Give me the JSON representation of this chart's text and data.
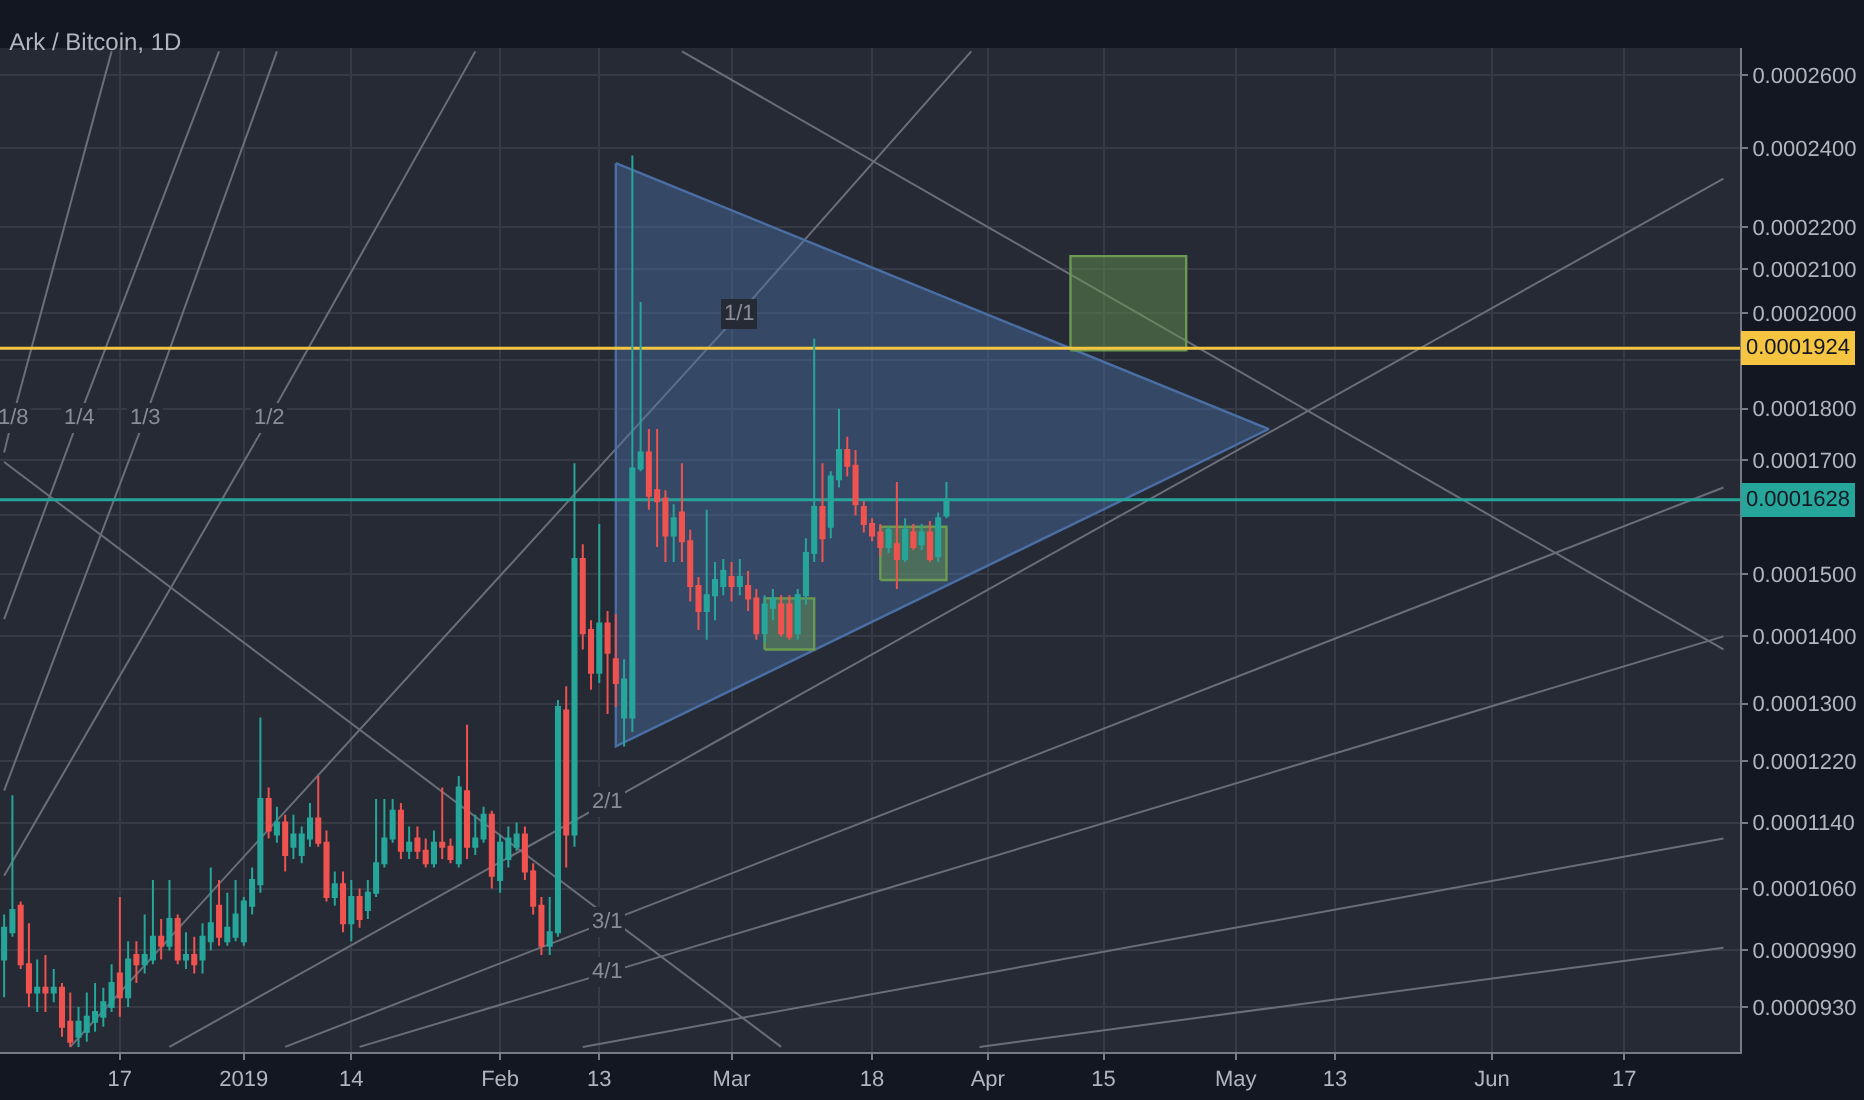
{
  "chart_data": {
    "type": "candlestick",
    "title": "Ark / Bitcoin, 1D",
    "x": [
      "2018-12-03",
      "2018-12-04",
      "2018-12-05",
      "2018-12-06",
      "2018-12-07",
      "2018-12-08",
      "2018-12-09",
      "2018-12-10",
      "2018-12-11",
      "2018-12-12",
      "2018-12-13",
      "2018-12-14",
      "2018-12-15",
      "2018-12-16",
      "2018-12-17",
      "2018-12-18",
      "2018-12-19",
      "2018-12-20",
      "2018-12-21",
      "2018-12-22",
      "2018-12-23",
      "2018-12-24",
      "2018-12-25",
      "2018-12-26",
      "2018-12-27",
      "2018-12-28",
      "2018-12-29",
      "2018-12-30",
      "2018-12-31",
      "2019-01-01",
      "2019-01-02",
      "2019-01-03",
      "2019-01-04",
      "2019-01-05",
      "2019-01-06",
      "2019-01-07",
      "2019-01-08",
      "2019-01-09",
      "2019-01-10",
      "2019-01-11",
      "2019-01-12",
      "2019-01-13",
      "2019-01-14",
      "2019-01-15",
      "2019-01-16",
      "2019-01-17",
      "2019-01-18",
      "2019-01-19",
      "2019-01-20",
      "2019-01-21",
      "2019-01-22",
      "2019-01-23",
      "2019-01-24",
      "2019-01-25",
      "2019-01-26",
      "2019-01-27",
      "2019-01-28",
      "2019-01-29",
      "2019-01-30",
      "2019-01-31",
      "2019-02-01",
      "2019-02-02",
      "2019-02-03",
      "2019-02-04",
      "2019-02-05",
      "2019-02-06",
      "2019-02-07",
      "2019-02-08",
      "2019-02-09",
      "2019-02-10",
      "2019-02-11",
      "2019-02-12",
      "2019-02-13",
      "2019-02-14",
      "2019-02-15",
      "2019-02-16",
      "2019-02-17",
      "2019-02-18",
      "2019-02-19",
      "2019-02-20",
      "2019-02-21",
      "2019-02-22",
      "2019-02-23",
      "2019-02-24",
      "2019-02-25",
      "2019-02-26",
      "2019-02-27",
      "2019-02-28",
      "2019-03-01",
      "2019-03-02",
      "2019-03-03",
      "2019-03-04",
      "2019-03-05",
      "2019-03-06",
      "2019-03-07",
      "2019-03-08",
      "2019-03-09",
      "2019-03-10",
      "2019-03-11",
      "2019-03-12",
      "2019-03-13",
      "2019-03-14",
      "2019-03-15",
      "2019-03-16",
      "2019-03-17",
      "2019-03-18",
      "2019-03-19",
      "2019-03-20",
      "2019-03-21",
      "2019-03-22",
      "2019-03-23",
      "2019-03-24",
      "2019-03-25",
      "2019-03-26",
      "2019-03-27"
    ],
    "ohlc": [
      [
        9.8e-05,
        0.000103,
        9.4e-05,
        0.0001015
      ],
      [
        0.000101,
        0.0001175,
        0.0001005,
        0.0001035
      ],
      [
        0.000104,
        0.0001045,
        9.7e-05,
        9.75e-05
      ],
      [
        9.75e-05,
        0.000102,
        9.3e-05,
        9.45e-05
      ],
      [
        9.45e-05,
        9.8e-05,
        9.25e-05,
        9.5e-05
      ],
      [
        9.5e-05,
        9.85e-05,
        9.25e-05,
        9.45e-05
      ],
      [
        9.45e-05,
        9.7e-05,
        9.35e-05,
        9.5e-05
      ],
      [
        9.5e-05,
        9.55e-05,
        9e-05,
        9.1e-05
      ],
      [
        9.15e-05,
        9.45e-05,
        8.9e-05,
        8.95e-05
      ],
      [
        9e-05,
        9.3e-05,
        8.9e-05,
        9.15e-05
      ],
      [
        9.05e-05,
        9.45e-05,
        8.95e-05,
        9.2e-05
      ],
      [
        9.15e-05,
        9.55e-05,
        9.05e-05,
        9.25e-05
      ],
      [
        9.2e-05,
        9.5e-05,
        9.1e-05,
        9.35e-05
      ],
      [
        9.3e-05,
        9.75e-05,
        9.25e-05,
        9.55e-05
      ],
      [
        9.65e-05,
        0.000105,
        9.2e-05,
        9.4e-05
      ],
      [
        9.4e-05,
        0.0001,
        9.3e-05,
        9.8e-05
      ],
      [
        9.85e-05,
        0.0001,
        9.55e-05,
        9.75e-05
      ],
      [
        9.75e-05,
        0.000103,
        9.65e-05,
        9.85e-05
      ],
      [
        9.8e-05,
        0.000107,
        9.75e-05,
        0.0001005
      ],
      [
        0.0001005,
        0.0001025,
        9.8e-05,
        9.95e-05
      ],
      [
        9.95e-05,
        0.000107,
        9.9e-05,
        0.0001025
      ],
      [
        0.0001025,
        0.000103,
        9.75e-05,
        9.8e-05
      ],
      [
        9.8e-05,
        0.000101,
        9.7e-05,
        9.85e-05
      ],
      [
        9.85e-05,
        0.0001005,
        9.65e-05,
        9.75e-05
      ],
      [
        9.8e-05,
        0.000102,
        9.65e-05,
        0.0001005
      ],
      [
        0.0001,
        0.0001085,
        9.9e-05,
        0.000102
      ],
      [
        0.000104,
        0.000107,
        9.95e-05,
        0.0001005
      ],
      [
        0.0001,
        0.0001055,
        9.95e-05,
        0.0001015
      ],
      [
        0.0001005,
        0.000107,
        0.0001,
        0.000103
      ],
      [
        0.0001,
        0.000105,
        9.95e-05,
        0.0001045
      ],
      [
        0.000104,
        0.0001085,
        0.000103,
        0.000107
      ],
      [
        0.0001065,
        0.000128,
        0.0001055,
        0.000117
      ],
      [
        0.000117,
        0.0001185,
        0.000112,
        0.000113
      ],
      [
        0.0001125,
        0.000116,
        0.0001115,
        0.000114
      ],
      [
        0.000114,
        0.000115,
        0.000108,
        0.00011
      ],
      [
        0.000111,
        0.000115,
        0.0001095,
        0.0001125
      ],
      [
        0.00011,
        0.0001135,
        0.000109,
        0.0001125
      ],
      [
        0.000112,
        0.0001165,
        0.000111,
        0.0001145
      ],
      [
        0.0001145,
        0.00012,
        0.000111,
        0.0001115
      ],
      [
        0.0001115,
        0.000113,
        0.0001045,
        0.000105
      ],
      [
        0.000105,
        0.000108,
        0.000104,
        0.0001065
      ],
      [
        0.0001065,
        0.000108,
        0.000101,
        0.000102
      ],
      [
        0.000102,
        0.000107,
        0.0001,
        0.000105
      ],
      [
        0.000105,
        0.000106,
        0.0001015,
        0.0001025
      ],
      [
        0.0001035,
        0.000107,
        0.0001025,
        0.0001055
      ],
      [
        0.0001055,
        0.000117,
        0.000105,
        0.000109
      ],
      [
        0.000109,
        0.000117,
        0.0001085,
        0.000112
      ],
      [
        0.000112,
        0.000117,
        0.0001115,
        0.0001155
      ],
      [
        0.0001155,
        0.0001165,
        0.0001095,
        0.0001105
      ],
      [
        0.0001105,
        0.0001135,
        0.0001095,
        0.0001115
      ],
      [
        0.000112,
        0.0001135,
        0.0001095,
        0.0001105
      ],
      [
        0.0001105,
        0.000112,
        0.0001085,
        0.000109
      ],
      [
        0.000109,
        0.000113,
        0.0001085,
        0.0001115
      ],
      [
        0.0001115,
        0.0001185,
        0.0001095,
        0.000111
      ],
      [
        0.000111,
        0.000112,
        0.000109,
        0.0001095
      ],
      [
        0.000109,
        0.00012,
        0.0001085,
        0.0001185
      ],
      [
        0.000118,
        0.000127,
        0.0001095,
        0.000111
      ],
      [
        0.000111,
        0.000115,
        0.00011,
        0.000112
      ],
      [
        0.000112,
        0.000116,
        0.0001115,
        0.000115
      ],
      [
        0.000115,
        0.0001155,
        0.000106,
        0.0001075
      ],
      [
        0.000107,
        0.0001125,
        0.0001055,
        0.0001115
      ],
      [
        0.0001095,
        0.0001135,
        0.0001085,
        0.000112
      ],
      [
        0.000111,
        0.000114,
        0.0001105,
        0.0001125
      ],
      [
        0.0001125,
        0.0001135,
        0.000107,
        0.000108
      ],
      [
        0.000108,
        0.000109,
        0.000103,
        0.000104
      ],
      [
        0.000104,
        0.000105,
        9.85e-05,
        9.95e-05
      ],
      [
        9.95e-05,
        0.000105,
        9.85e-05,
        0.000101
      ],
      [
        0.000101,
        0.0001305,
        0.0001005,
        0.0001295
      ],
      [
        0.000129,
        0.0001325,
        0.0001085,
        0.0001125
      ],
      [
        0.0001125,
        0.0001695,
        0.000111,
        0.0001525
      ],
      [
        0.0001525,
        0.000155,
        0.000138,
        0.0001405
      ],
      [
        0.000141,
        0.0001425,
        0.000132,
        0.0001345
      ],
      [
        0.0001345,
        0.0001585,
        0.000133,
        0.000142
      ],
      [
        0.000142,
        0.000144,
        0.0001285,
        0.0001375
      ],
      [
        0.0001365,
        0.0001435,
        0.0001295,
        0.000133
      ],
      [
        0.000128,
        0.0001365,
        0.000124,
        0.0001335
      ],
      [
        0.000128,
        0.000238,
        0.000126,
        0.0001685
      ],
      [
        0.0001685,
        0.0002025,
        0.000168,
        0.0001715
      ],
      [
        0.0001715,
        0.000176,
        0.000161,
        0.0001635
      ],
      [
        0.0001645,
        0.000176,
        0.0001545,
        0.0001625
      ],
      [
        0.000163,
        0.0001645,
        0.000152,
        0.0001565
      ],
      [
        0.0001565,
        0.000162,
        0.000152,
        0.0001595
      ],
      [
        0.0001605,
        0.0001695,
        0.000152,
        0.0001555
      ],
      [
        0.0001555,
        0.0001575,
        0.0001455,
        0.000148
      ],
      [
        0.000148,
        0.0001495,
        0.000141,
        0.000144
      ],
      [
        0.000144,
        0.000161,
        0.0001395,
        0.0001465
      ],
      [
        0.0001465,
        0.000152,
        0.0001425,
        0.000149
      ],
      [
        0.000148,
        0.0001525,
        0.0001465,
        0.0001505
      ],
      [
        0.0001495,
        0.000152,
        0.0001455,
        0.000148
      ],
      [
        0.000148,
        0.0001525,
        0.0001465,
        0.0001495
      ],
      [
        0.000148,
        0.0001505,
        0.000144,
        0.000146
      ],
      [
        0.000146,
        0.0001475,
        0.0001395,
        0.0001405
      ],
      [
        0.0001405,
        0.0001465,
        0.000139,
        0.000145
      ],
      [
        0.0001445,
        0.0001475,
        0.0001425,
        0.000146
      ],
      [
        0.000145,
        0.0001465,
        0.00014,
        0.0001405
      ],
      [
        0.000145,
        0.0001465,
        0.0001395,
        0.00014
      ],
      [
        0.0001405,
        0.0001475,
        0.0001395,
        0.0001465
      ],
      [
        0.0001465,
        0.000156,
        0.000145,
        0.0001535
      ],
      [
        0.0001535,
        0.0001945,
        0.000152,
        0.0001615
      ],
      [
        0.0001615,
        0.0001695,
        0.000152,
        0.000156
      ],
      [
        0.000158,
        0.000168,
        0.000156,
        0.000167
      ],
      [
        0.0001665,
        0.00018,
        0.000165,
        0.000172
      ],
      [
        0.000172,
        0.0001745,
        0.000167,
        0.000169
      ],
      [
        0.000169,
        0.000172,
        0.00016,
        0.000162
      ],
      [
        0.0001615,
        0.0001625,
        0.000157,
        0.0001585
      ],
      [
        0.0001585,
        0.0001595,
        0.0001555,
        0.0001565
      ],
      [
        0.000157,
        0.0001585,
        0.000153,
        0.0001545
      ],
      [
        0.0001545,
        0.000158,
        0.0001535,
        0.0001575
      ],
      [
        0.000155,
        0.000166,
        0.0001475,
        0.0001525
      ],
      [
        0.0001525,
        0.0001595,
        0.000152,
        0.0001575
      ],
      [
        0.000157,
        0.0001585,
        0.000154,
        0.0001545
      ],
      [
        0.000155,
        0.0001585,
        0.000154,
        0.000157
      ],
      [
        0.000157,
        0.000159,
        0.000152,
        0.0001525
      ],
      [
        0.000153,
        0.0001605,
        0.000152,
        0.0001595
      ],
      [
        0.00016,
        0.000166,
        0.0001595,
        0.0001628
      ]
    ],
    "series": [
      {
        "type": "line",
        "name": "1/1",
        "color": "#6a6e79",
        "x": [
          "2018-12-11",
          "2019-03-02",
          "2019-03-30"
        ],
        "values": [
          8.9e-05,
          0.0002,
          0.000267
        ]
      },
      {
        "type": "line",
        "name": "2/1",
        "color": "#6a6e79",
        "x": [
          "2018-12-23",
          "2019-02-14",
          "2019-06-29"
        ],
        "values": [
          8.9e-05,
          0.0001166,
          0.000232
        ]
      },
      {
        "type": "line",
        "name": "3/1",
        "color": "#6a6e79",
        "x": [
          "2019-01-06",
          "2019-02-14",
          "2019-06-29"
        ],
        "values": [
          8.9e-05,
          0.0001022,
          0.000165
        ]
      },
      {
        "type": "line",
        "name": "4/1",
        "color": "#6a6e79",
        "x": [
          "2019-01-15",
          "2019-02-14",
          "2019-06-29"
        ],
        "values": [
          8.9e-05,
          9.66e-05,
          0.00014
        ]
      },
      {
        "type": "line",
        "color": "#6a6e79",
        "x": [
          "2019-02-11",
          "2019-06-29"
        ],
        "values": [
          8.9e-05,
          0.000112
        ]
      },
      {
        "type": "line",
        "color": "#6a6e79",
        "x": [
          "2019-03-31",
          "2019-06-29"
        ],
        "values": [
          8.9e-05,
          9.93e-05
        ]
      },
      {
        "type": "line",
        "name": "1/2",
        "color": "#6a6e79",
        "x": [
          "2018-12-03",
          "2019-01-04",
          "2019-01-29"
        ],
        "values": [
          0.0001075,
          0.000178,
          0.000267
        ]
      },
      {
        "type": "line",
        "name": "1/3",
        "color": "#6a6e79",
        "x": [
          "2018-12-03",
          "2018-12-20",
          "2019-01-05"
        ],
        "values": [
          0.0001181,
          0.000178,
          0.000267
        ]
      },
      {
        "type": "line",
        "name": "1/4",
        "color": "#6a6e79",
        "x": [
          "2018-12-03",
          "2018-12-12",
          "2018-12-29"
        ],
        "values": [
          0.0001427,
          0.000178,
          0.000267
        ]
      },
      {
        "type": "line",
        "name": "1/8",
        "color": "#6a6e79",
        "x": [
          "2018-12-03",
          "2018-12-04",
          "2018-12-16"
        ],
        "values": [
          0.0001715,
          0.000178,
          0.000267
        ]
      },
      {
        "type": "line",
        "color": "#6a6e79",
        "x": [
          "2018-12-03",
          "2019-03-07"
        ],
        "values": [
          0.0001697,
          8.9e-05
        ]
      },
      {
        "type": "line",
        "color": "#6a6e79",
        "x": [
          "2019-02-23",
          "2019-06-29"
        ],
        "values": [
          0.000267,
          0.000138
        ]
      },
      {
        "type": "area",
        "color": "#4a6fa5",
        "x": [
          "2019-02-15",
          "2019-05-05",
          "2019-02-15",
          "2019-02-15"
        ],
        "values": [
          0.000236,
          0.000176,
          0.000124,
          0.000236
        ]
      },
      {
        "type": "area",
        "color": "#6b9a50",
        "x": [
          "2019-04-11",
          "2019-04-25",
          "2019-04-25",
          "2019-04-11",
          "2019-04-11"
        ],
        "values": [
          0.000192,
          0.000192,
          0.000213,
          0.000213,
          0.000192
        ]
      },
      {
        "type": "area",
        "color": "#6b9a50",
        "x": [
          "2019-03-05",
          "2019-03-11",
          "2019-03-11",
          "2019-03-05",
          "2019-03-05"
        ],
        "values": [
          0.000138,
          0.000138,
          0.000146,
          0.000146,
          0.000138
        ]
      },
      {
        "type": "area",
        "color": "#6b9a50",
        "x": [
          "2019-03-19",
          "2019-03-27",
          "2019-03-27",
          "2019-03-19",
          "2019-03-19"
        ],
        "values": [
          0.000149,
          0.000149,
          0.000158,
          0.000158,
          0.000149
        ]
      }
    ],
    "ref_lines": [
      {
        "axis": "y",
        "value": 0.0001924,
        "label": "0.0001924",
        "color": "#f5c542"
      },
      {
        "axis": "y",
        "value": 0.0001628,
        "label": "0.0001628",
        "color": "#26a69a"
      }
    ],
    "xlim": [
      "2018-12-02T12:00",
      "2019-07-01"
    ],
    "xticks": [
      {
        "value": "2018-12-17",
        "label": "17"
      },
      {
        "value": "2019-01-01",
        "label": "2019"
      },
      {
        "value": "2019-01-14",
        "label": "14"
      },
      {
        "value": "2019-02-01",
        "label": "Feb"
      },
      {
        "value": "2019-02-13",
        "label": "13"
      },
      {
        "value": "2019-03-01",
        "label": "Mar"
      },
      {
        "value": "2019-03-18",
        "label": "18"
      },
      {
        "value": "2019-04-01",
        "label": "Apr"
      },
      {
        "value": "2019-04-15",
        "label": "15"
      },
      {
        "value": "2019-05-01",
        "label": "May"
      },
      {
        "value": "2019-05-13",
        "label": "13"
      },
      {
        "value": "2019-06-01",
        "label": "Jun"
      },
      {
        "value": "2019-06-17",
        "label": "17"
      }
    ],
    "ylim": [
      8.85e-05,
      0.000268
    ],
    "yticks": [
      {
        "value": 9.3e-05,
        "label": "0.0000930"
      },
      {
        "value": 9.9e-05,
        "label": "0.0000990"
      },
      {
        "value": 0.000106,
        "label": "0.0001060"
      },
      {
        "value": 0.000114,
        "label": "0.0001140"
      },
      {
        "value": 0.000122,
        "label": "0.0001220"
      },
      {
        "value": 0.00013,
        "label": "0.0001300"
      },
      {
        "value": 0.00014,
        "label": "0.0001400"
      },
      {
        "value": 0.00015,
        "label": "0.0001500"
      },
      {
        "value": 0.00016,
        "label": null
      },
      {
        "value": 0.00017,
        "label": "0.0001700"
      },
      {
        "value": 0.00018,
        "label": "0.0001800"
      },
      {
        "value": 0.00019,
        "label": null
      },
      {
        "value": 0.0002,
        "label": "0.0002000"
      },
      {
        "value": 0.00021,
        "label": "0.0002100"
      },
      {
        "value": 0.00022,
        "label": "0.0002200"
      },
      {
        "value": 0.00024,
        "label": "0.0002400"
      },
      {
        "value": 0.00026,
        "label": "0.0002600"
      }
    ],
    "log": "y",
    "grid": true,
    "legend": false
  }
}
